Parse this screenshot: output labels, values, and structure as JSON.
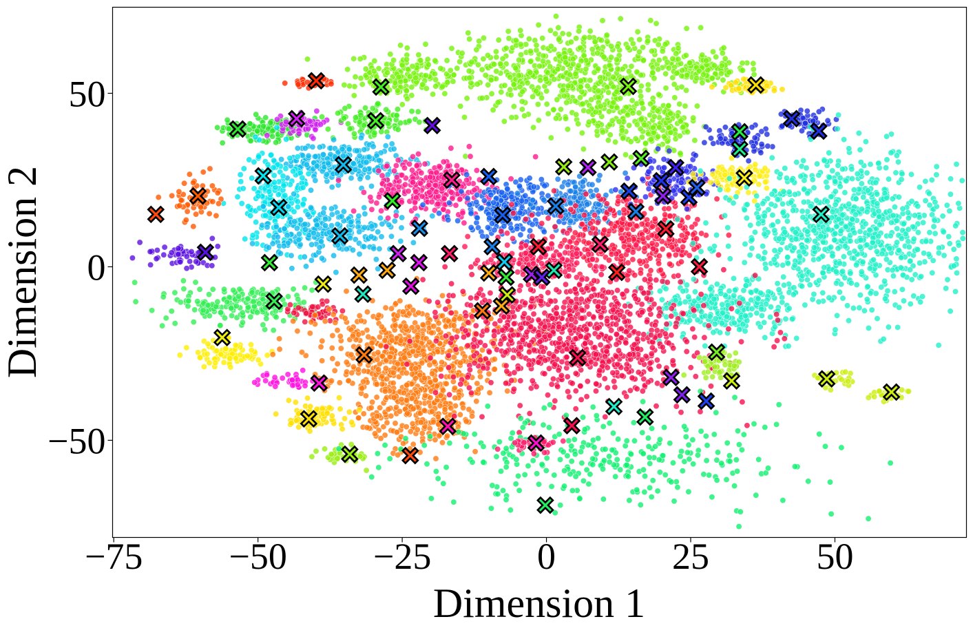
{
  "chart_data": {
    "type": "scatter",
    "title": "",
    "xlabel": "Dimension 1",
    "ylabel": "Dimension 2",
    "xlim": [
      -75.2,
      72.8
    ],
    "ylim": [
      -78,
      74.8
    ],
    "xticks": [
      -75,
      -50,
      -25,
      0,
      25,
      50
    ],
    "yticks": [
      -50,
      0,
      50
    ],
    "xtick_labels": [
      "−75",
      "−50",
      "−25",
      "0",
      "25",
      "50"
    ],
    "ytick_labels": [
      "−50",
      "0",
      "50"
    ],
    "grid": false,
    "legend": "none",
    "point_clusters": [
      {
        "cx": 3,
        "cy": 57,
        "sx": 11,
        "sy": 6,
        "n": 500,
        "color": "#77f20c"
      },
      {
        "cx": -25,
        "cy": 55,
        "sx": 4,
        "sy": 3,
        "n": 150,
        "color": "#77f20c"
      },
      {
        "cx": 20,
        "cy": 40,
        "sx": 3,
        "sy": 4,
        "n": 120,
        "color": "#77f20c"
      },
      {
        "cx": 27,
        "cy": 57,
        "sx": 4,
        "sy": 2.5,
        "n": 120,
        "color": "#77f20c"
      },
      {
        "cx": 10,
        "cy": 45,
        "sx": 5,
        "sy": 5,
        "n": 150,
        "color": "#77f20c"
      },
      {
        "cx": 36,
        "cy": 52,
        "sx": 3,
        "sy": 1,
        "n": 50,
        "color": "#ffe000"
      },
      {
        "cx": -40,
        "cy": 53,
        "sx": 2,
        "sy": 0.7,
        "n": 30,
        "color": "#ff2a00"
      },
      {
        "cx": -48,
        "cy": 40,
        "sx": 4,
        "sy": 1.8,
        "n": 120,
        "color": "#2ee62e"
      },
      {
        "cx": -42,
        "cy": 41,
        "sx": 2,
        "sy": 1.5,
        "n": 60,
        "color": "#d020f0"
      },
      {
        "cx": -30,
        "cy": 42,
        "sx": 4,
        "sy": 2,
        "n": 100,
        "color": "#44ee22"
      },
      {
        "cx": -35,
        "cy": 30,
        "sx": 5,
        "sy": 3,
        "n": 250,
        "color": "#11bbee"
      },
      {
        "cx": -47,
        "cy": 20,
        "sx": 3,
        "sy": 7,
        "n": 200,
        "color": "#00e5ee"
      },
      {
        "cx": -37,
        "cy": 10,
        "sx": 6,
        "sy": 4,
        "n": 220,
        "color": "#11bbee"
      },
      {
        "cx": -20,
        "cy": 23,
        "sx": 5,
        "sy": 4,
        "n": 300,
        "color": "#ff1a8c"
      },
      {
        "cx": -6,
        "cy": 17,
        "sx": 5,
        "sy": 4,
        "n": 250,
        "color": "#1560f0"
      },
      {
        "cx": 6,
        "cy": 18,
        "sx": 4,
        "sy": 4,
        "n": 150,
        "color": "#1a80e8"
      },
      {
        "cx": 15,
        "cy": 8,
        "sx": 7,
        "sy": 6,
        "n": 400,
        "color": "#ff1744"
      },
      {
        "cx": 22,
        "cy": 25,
        "sx": 3,
        "sy": 3,
        "n": 120,
        "color": "#3030f0"
      },
      {
        "cx": 33,
        "cy": 26,
        "sx": 3,
        "sy": 2,
        "n": 100,
        "color": "#ffee11"
      },
      {
        "cx": 33,
        "cy": 37,
        "sx": 3,
        "sy": 2,
        "n": 80,
        "color": "#2030e0"
      },
      {
        "cx": 45,
        "cy": 42,
        "sx": 2,
        "sy": 2,
        "n": 60,
        "color": "#2030e0"
      },
      {
        "cx": 52,
        "cy": 10,
        "sx": 10,
        "sy": 11,
        "n": 900,
        "color": "#20f0c8"
      },
      {
        "cx": 30,
        "cy": -12,
        "sx": 6,
        "sy": 4,
        "n": 250,
        "color": "#20f0c8"
      },
      {
        "cx": -61,
        "cy": 20,
        "sx": 2,
        "sy": 3,
        "n": 60,
        "color": "#ff5a00"
      },
      {
        "cx": -63,
        "cy": 3,
        "sx": 3,
        "sy": 2,
        "n": 60,
        "color": "#5a10e0"
      },
      {
        "cx": -52,
        "cy": -11,
        "sx": 6,
        "sy": 3,
        "n": 200,
        "color": "#33ee55"
      },
      {
        "cx": -55,
        "cy": -25,
        "sx": 3,
        "sy": 2,
        "n": 80,
        "color": "#ffee00"
      },
      {
        "cx": -40,
        "cy": -13,
        "sx": 2,
        "sy": 1.5,
        "n": 50,
        "color": "#f01040"
      },
      {
        "cx": -24,
        "cy": -24,
        "sx": 8,
        "sy": 7,
        "n": 600,
        "color": "#ff7a10"
      },
      {
        "cx": -22,
        "cy": -42,
        "sx": 5,
        "sy": 6,
        "n": 250,
        "color": "#ff7a10"
      },
      {
        "cx": 5,
        "cy": -20,
        "sx": 11,
        "sy": 9,
        "n": 900,
        "color": "#f5104e"
      },
      {
        "cx": 0,
        "cy": 3,
        "sx": 5,
        "sy": 3,
        "n": 150,
        "color": "#ff1a5a"
      },
      {
        "cx": -45,
        "cy": -33,
        "sx": 3,
        "sy": 1,
        "n": 40,
        "color": "#ff10e0"
      },
      {
        "cx": -40,
        "cy": -43,
        "sx": 3,
        "sy": 2,
        "n": 80,
        "color": "#ffe000"
      },
      {
        "cx": -35,
        "cy": -54,
        "sx": 2,
        "sy": 1.5,
        "n": 40,
        "color": "#99ee11"
      },
      {
        "cx": 12,
        "cy": -55,
        "sx": 18,
        "sy": 7,
        "n": 300,
        "color": "#10f070"
      },
      {
        "cx": 30,
        "cy": -28,
        "sx": 2,
        "sy": 2,
        "n": 60,
        "color": "#a0ee20"
      },
      {
        "cx": 50,
        "cy": -32,
        "sx": 2,
        "sy": 2,
        "n": 25,
        "color": "#ccee10"
      },
      {
        "cx": 60,
        "cy": -37,
        "sx": 2,
        "sy": 0.8,
        "n": 25,
        "color": "#ccee10"
      },
      {
        "cx": -2,
        "cy": -51,
        "sx": 2,
        "sy": 1,
        "n": 40,
        "color": "#ff1a6a"
      }
    ],
    "centroids": [
      {
        "x": -39.9,
        "y": 53.6,
        "color": "#ff2a00"
      },
      {
        "x": -28.7,
        "y": 51.8,
        "color": "#44ee22"
      },
      {
        "x": 14.2,
        "y": 52.0,
        "color": "#77f20c"
      },
      {
        "x": 36.3,
        "y": 52.4,
        "color": "#ffe000"
      },
      {
        "x": -53.5,
        "y": 39.7,
        "color": "#2ee62e"
      },
      {
        "x": -43.3,
        "y": 42.7,
        "color": "#d020f0"
      },
      {
        "x": -29.6,
        "y": 42.1,
        "color": "#44ee22"
      },
      {
        "x": -19.8,
        "y": 40.7,
        "color": "#6010e0"
      },
      {
        "x": 42.5,
        "y": 42.7,
        "color": "#2030e0"
      },
      {
        "x": 47.2,
        "y": 39.1,
        "color": "#2030e0"
      },
      {
        "x": 33.5,
        "y": 38.9,
        "color": "#22ee44"
      },
      {
        "x": 33.5,
        "y": 33.9,
        "color": "#22ee88"
      },
      {
        "x": -49.1,
        "y": 26.2,
        "color": "#00e5ee"
      },
      {
        "x": -35.2,
        "y": 29.4,
        "color": "#11bbee"
      },
      {
        "x": -16.4,
        "y": 25.0,
        "color": "#ff1a8c"
      },
      {
        "x": -10.0,
        "y": 26.0,
        "color": "#1560f0"
      },
      {
        "x": 3.0,
        "y": 28.8,
        "color": "#99ee11"
      },
      {
        "x": 7.2,
        "y": 28.6,
        "color": "#b020f0"
      },
      {
        "x": 10.9,
        "y": 30.2,
        "color": "#88ee11"
      },
      {
        "x": 16.4,
        "y": 31.2,
        "color": "#55ee22"
      },
      {
        "x": 22.4,
        "y": 28.6,
        "color": "#4020f0"
      },
      {
        "x": 19.9,
        "y": 24.8,
        "color": "#2030f0"
      },
      {
        "x": 14.3,
        "y": 21.8,
        "color": "#1a40e0"
      },
      {
        "x": 24.7,
        "y": 20.0,
        "color": "#2040f0"
      },
      {
        "x": 26.1,
        "y": 22.8,
        "color": "#2060f0"
      },
      {
        "x": 20.2,
        "y": 20.4,
        "color": "#9020f0"
      },
      {
        "x": 34.3,
        "y": 25.6,
        "color": "#ffee11"
      },
      {
        "x": -60.4,
        "y": 20.4,
        "color": "#ff5a00"
      },
      {
        "x": -67.7,
        "y": 15.1,
        "color": "#ff4a10"
      },
      {
        "x": -46.4,
        "y": 17.1,
        "color": "#00d5ee"
      },
      {
        "x": -26.7,
        "y": 19.0,
        "color": "#33ee22"
      },
      {
        "x": -7.6,
        "y": 14.9,
        "color": "#1560f0"
      },
      {
        "x": 1.6,
        "y": 17.5,
        "color": "#1a80e8"
      },
      {
        "x": 15.5,
        "y": 15.9,
        "color": "#1a80e8"
      },
      {
        "x": 47.6,
        "y": 15.1,
        "color": "#20f0c8"
      },
      {
        "x": -22.0,
        "y": 11.1,
        "color": "#1a90e8"
      },
      {
        "x": 20.7,
        "y": 10.9,
        "color": "#ff1a30"
      },
      {
        "x": -35.8,
        "y": 8.9,
        "color": "#11bbee"
      },
      {
        "x": -59.1,
        "y": 4.2,
        "color": "#5a10e0"
      },
      {
        "x": -9.4,
        "y": 5.8,
        "color": "#1a80e8"
      },
      {
        "x": -1.4,
        "y": 5.8,
        "color": "#ff1a30"
      },
      {
        "x": 9.3,
        "y": 6.5,
        "color": "#ff1a6a"
      },
      {
        "x": -25.7,
        "y": 3.8,
        "color": "#d020f0"
      },
      {
        "x": -16.8,
        "y": 3.8,
        "color": "#ff1a6a"
      },
      {
        "x": -22.1,
        "y": 1.2,
        "color": "#e010f0"
      },
      {
        "x": -48.0,
        "y": 1.2,
        "color": "#33ee33"
      },
      {
        "x": -7.3,
        "y": 1.4,
        "color": "#11ccee"
      },
      {
        "x": 26.5,
        "y": 0.0,
        "color": "#ff1a40"
      },
      {
        "x": -32.5,
        "y": -2.4,
        "color": "#ffaa10"
      },
      {
        "x": -27.6,
        "y": -1.0,
        "color": "#ffaa10"
      },
      {
        "x": -10.0,
        "y": -1.8,
        "color": "#ffaa10"
      },
      {
        "x": -7.0,
        "y": -3.0,
        "color": "#33ee33"
      },
      {
        "x": -2.6,
        "y": -2.2,
        "color": "#a020f0"
      },
      {
        "x": -0.8,
        "y": -3.0,
        "color": "#6020f0"
      },
      {
        "x": 1.3,
        "y": -1.0,
        "color": "#20e8b0"
      },
      {
        "x": 12.2,
        "y": -1.6,
        "color": "#ff2020"
      },
      {
        "x": -38.7,
        "y": -5.0,
        "color": "#eeee10"
      },
      {
        "x": -23.5,
        "y": -5.6,
        "color": "#e010e0"
      },
      {
        "x": -31.8,
        "y": -7.9,
        "color": "#20e8c0"
      },
      {
        "x": -6.8,
        "y": -8.1,
        "color": "#ccee10"
      },
      {
        "x": -47.2,
        "y": -9.9,
        "color": "#33ee55"
      },
      {
        "x": -7.8,
        "y": -11.3,
        "color": "#ffaa10"
      },
      {
        "x": -11.1,
        "y": -12.7,
        "color": "#ff7a10"
      },
      {
        "x": -56.2,
        "y": -20.4,
        "color": "#eeee10"
      },
      {
        "x": -31.6,
        "y": -25.4,
        "color": "#ff7a10"
      },
      {
        "x": 5.4,
        "y": -26.2,
        "color": "#f5104e"
      },
      {
        "x": 29.5,
        "y": -24.6,
        "color": "#77ee22"
      },
      {
        "x": -39.4,
        "y": -33.5,
        "color": "#ff10e0"
      },
      {
        "x": 21.6,
        "y": -31.9,
        "color": "#9020f0"
      },
      {
        "x": 32.1,
        "y": -32.9,
        "color": "#ccee10"
      },
      {
        "x": 48.6,
        "y": -32.3,
        "color": "#ccee10"
      },
      {
        "x": 23.5,
        "y": -36.9,
        "color": "#8020f0"
      },
      {
        "x": 27.7,
        "y": -38.7,
        "color": "#2040f0"
      },
      {
        "x": 59.8,
        "y": -36.1,
        "color": "#ccee10"
      },
      {
        "x": 11.7,
        "y": -40.3,
        "color": "#20eecc"
      },
      {
        "x": 17.1,
        "y": -43.3,
        "color": "#22ee66"
      },
      {
        "x": -41.2,
        "y": -43.8,
        "color": "#ffe000"
      },
      {
        "x": -17.1,
        "y": -46.0,
        "color": "#ff10b0"
      },
      {
        "x": 4.4,
        "y": -45.8,
        "color": "#f5104e"
      },
      {
        "x": -1.8,
        "y": -50.8,
        "color": "#ff10d0"
      },
      {
        "x": -34.1,
        "y": -54.0,
        "color": "#99ee11"
      },
      {
        "x": -23.6,
        "y": -54.4,
        "color": "#ff4a10"
      },
      {
        "x": -0.2,
        "y": -68.7,
        "color": "#22ee66"
      }
    ]
  }
}
